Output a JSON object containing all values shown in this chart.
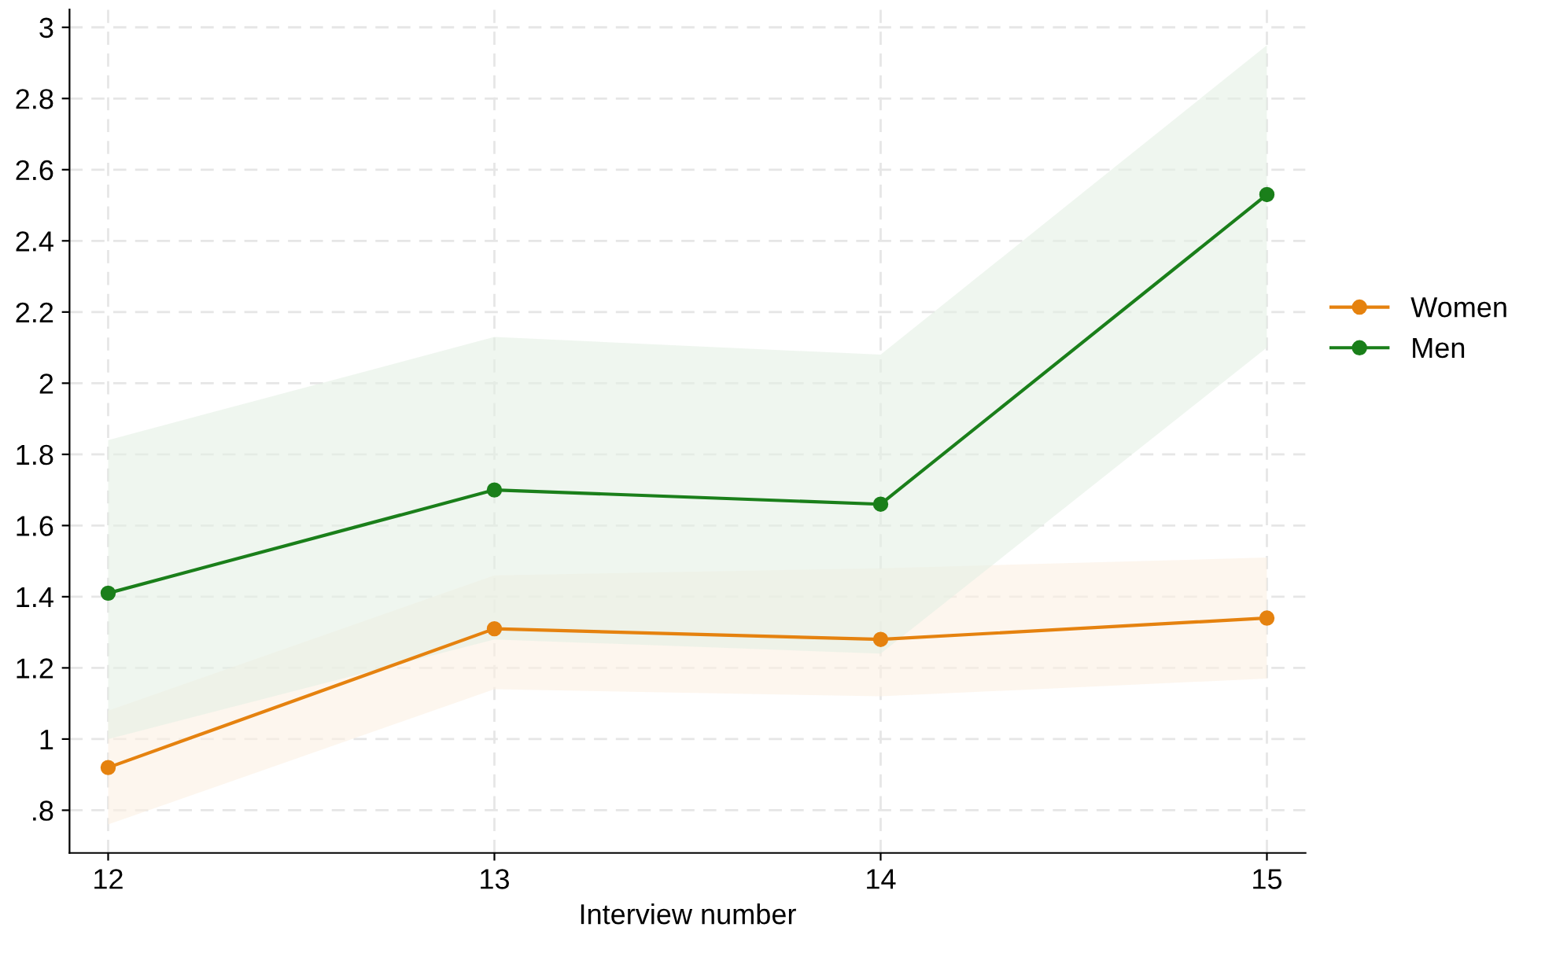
{
  "chart_data": {
    "type": "line",
    "xlabel": "Interview number",
    "x": [
      12,
      13,
      14,
      15
    ],
    "series": [
      {
        "name": "Women",
        "color": "#e5820f",
        "values": [
          0.92,
          1.31,
          1.28,
          1.34
        ],
        "lower": [
          0.76,
          1.14,
          1.12,
          1.17
        ],
        "upper": [
          1.08,
          1.46,
          1.48,
          1.51
        ]
      },
      {
        "name": "Men",
        "color": "#1a7f1a",
        "values": [
          1.41,
          1.7,
          1.66,
          2.53
        ],
        "lower": [
          1.0,
          1.28,
          1.24,
          2.1
        ],
        "upper": [
          1.84,
          2.13,
          2.08,
          2.95
        ]
      }
    ],
    "xlim": [
      11.9,
      15.1
    ],
    "xticks": [
      12,
      13,
      14,
      15
    ],
    "ylim": [
      0.68,
      3.05
    ],
    "yticks": [
      {
        "value": 0.8,
        "label": ".8"
      },
      1,
      1.2,
      1.4,
      1.6,
      1.8,
      2,
      2.2,
      2.4,
      2.6,
      2.8,
      3
    ],
    "grid": true,
    "legend": "right",
    "marker": "circle",
    "line_style": "solid"
  }
}
